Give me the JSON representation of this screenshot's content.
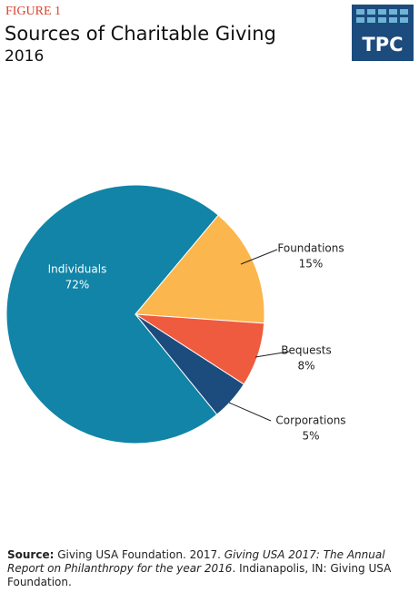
{
  "chart_data": {
    "type": "pie",
    "figure_label": "FIGURE 1",
    "title": "Sources of Charitable Giving",
    "subtitle": "2016",
    "logo_text": "TPC",
    "categories": [
      "Individuals",
      "Foundations",
      "Bequests",
      "Corporations"
    ],
    "values": [
      72,
      15,
      8,
      5
    ],
    "value_labels": [
      "72%",
      "15%",
      "8%",
      "5%"
    ],
    "colors": [
      "#1184a7",
      "#fbb64d",
      "#ef5b3e",
      "#1c4b7d"
    ],
    "source": [
      "Source:",
      " Giving USA Foundation. 2017. ",
      "Giving USA 2017: The Annual Report on Philanthropy for the year 2016",
      ". Indianapolis, IN: Giving USA Foundation."
    ]
  }
}
